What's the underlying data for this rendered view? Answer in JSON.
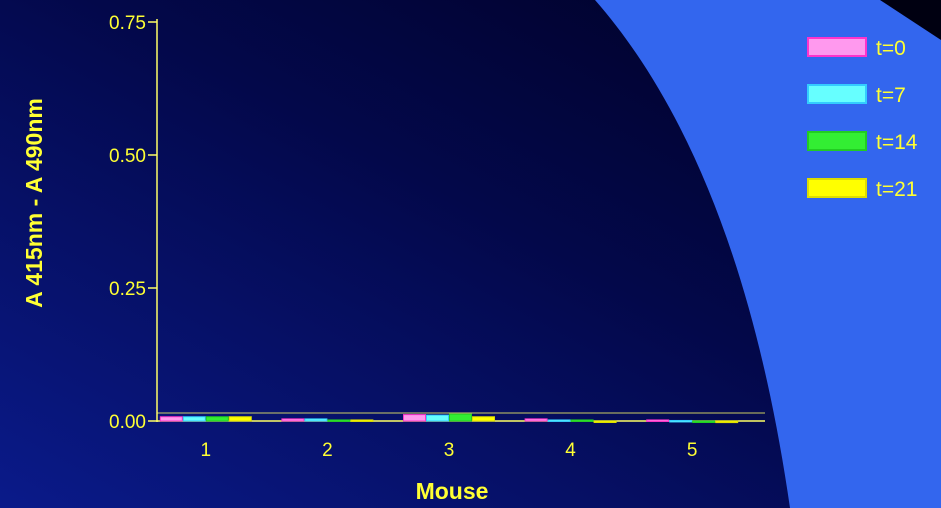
{
  "colors": {
    "background_dark": "#000033",
    "background_mid": "#0a1a7a",
    "curve_blue": "#3366ee",
    "axis": "#ffff66",
    "text": "#ffff33"
  },
  "chart_data": {
    "type": "bar",
    "title": "",
    "xlabel": "Mouse",
    "ylabel": "A 415nm - A 490nm",
    "ylim": [
      0,
      0.75
    ],
    "yticks": [
      "0.00",
      "0.25",
      "0.50",
      "0.75"
    ],
    "ytick_values": [
      0,
      0.25,
      0.5,
      0.75
    ],
    "categories": [
      "1",
      "2",
      "3",
      "4",
      "5"
    ],
    "grid": false,
    "legend_position": "top-right",
    "series": [
      {
        "name": "t=0",
        "color": "#ff99ee",
        "edge": "#ff33cc",
        "values": [
          0.008,
          0.004,
          0.012,
          0.004,
          0.002
        ]
      },
      {
        "name": "t=7",
        "color": "#66ffff",
        "edge": "#33ccff",
        "values": [
          0.008,
          0.004,
          0.011,
          0.002,
          0.001
        ]
      },
      {
        "name": "t=14",
        "color": "#33ee33",
        "edge": "#22cc22",
        "values": [
          0.008,
          0.002,
          0.013,
          0.002,
          -0.002
        ]
      },
      {
        "name": "t=21",
        "color": "#ffff00",
        "edge": "#dddd00",
        "values": [
          0.008,
          0.002,
          0.008,
          -0.002,
          -0.003
        ]
      }
    ]
  }
}
